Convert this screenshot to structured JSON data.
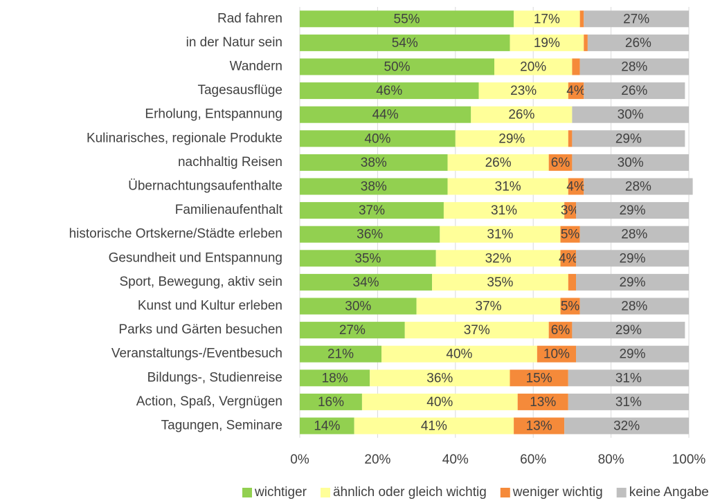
{
  "chart_data": {
    "type": "stacked_bar_horizontal",
    "categories": [
      "Rad fahren",
      "in der Natur sein",
      "Wandern",
      "Tagesausflüge",
      "Erholung, Entspannung",
      "Kulinarisches, regionale Produkte",
      "nachhaltig Reisen",
      "Übernachtungsaufenthalte",
      "Familienaufenthalt",
      "historische Ortskerne/Städte erleben",
      "Gesundheit und Entspannung",
      "Sport, Bewegung, aktiv sein",
      "Kunst und Kultur erleben",
      "Parks und Gärten besuchen",
      "Veranstaltungs-/Eventbesuch",
      "Bildungs-, Studienreise",
      "Action, Spaß, Vergnügen",
      "Tagungen, Seminare"
    ],
    "series": [
      {
        "name": "wichtiger",
        "color": "#92d050",
        "values": [
          55,
          54,
          50,
          46,
          44,
          40,
          38,
          38,
          37,
          36,
          35,
          34,
          30,
          27,
          21,
          18,
          16,
          14
        ],
        "value_labels": [
          "55%",
          "54%",
          "50%",
          "46%",
          "44%",
          "40%",
          "38%",
          "38%",
          "37%",
          "36%",
          "35%",
          "34%",
          "30%",
          "27%",
          "21%",
          "18%",
          "16%",
          "14%"
        ]
      },
      {
        "name": "ähnlich oder gleich wichtig",
        "color": "#ffff99",
        "values": [
          17,
          19,
          20,
          23,
          26,
          29,
          26,
          31,
          31,
          31,
          32,
          35,
          37,
          37,
          40,
          36,
          40,
          41
        ],
        "value_labels": [
          "17%",
          "19%",
          "20%",
          "23%",
          "26%",
          "29%",
          "26%",
          "31%",
          "31%",
          "31%",
          "32%",
          "35%",
          "37%",
          "37%",
          "40%",
          "36%",
          "40%",
          "41%"
        ]
      },
      {
        "name": "weniger wichtig",
        "color": "#f58a3a",
        "values": [
          1,
          1,
          2,
          4,
          0,
          1,
          6,
          4,
          3,
          5,
          4,
          2,
          5,
          6,
          10,
          15,
          13,
          13
        ],
        "value_labels": [
          null,
          null,
          null,
          "4%",
          null,
          null,
          "6%",
          "4%",
          "3%",
          "5%",
          "4%",
          null,
          "5%",
          "6%",
          "10%",
          "15%",
          "13%",
          "13%"
        ]
      },
      {
        "name": "keine Angabe",
        "color": "#bfbfbf",
        "values": [
          27,
          26,
          28,
          26,
          30,
          29,
          30,
          28,
          29,
          28,
          29,
          29,
          28,
          29,
          29,
          31,
          31,
          32
        ],
        "value_labels": [
          "27%",
          "26%",
          "28%",
          "26%",
          "30%",
          "29%",
          "30%",
          "28%",
          "29%",
          "28%",
          "29%",
          "29%",
          "28%",
          "29%",
          "29%",
          "31%",
          "31%",
          "32%"
        ]
      }
    ],
    "xlim": [
      0,
      100
    ],
    "xticks": [
      {
        "value": 0,
        "label": "0%"
      },
      {
        "value": 20,
        "label": "20%"
      },
      {
        "value": 40,
        "label": "40%"
      },
      {
        "value": 60,
        "label": "60%"
      },
      {
        "value": 80,
        "label": "80%"
      },
      {
        "value": 100,
        "label": "100%"
      }
    ],
    "grid": true,
    "legend": "bottom"
  }
}
